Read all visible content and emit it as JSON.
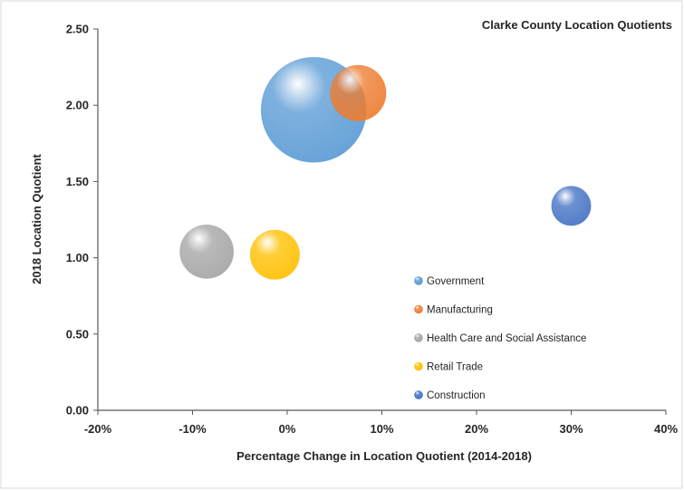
{
  "chart_data": {
    "type": "bubble",
    "title": "Clarke County Location Quotients",
    "xlabel": "Percentage Change in Location Quotient (2014-2018)",
    "ylabel": "2018 Location Quotient",
    "xlim": [
      -20,
      40
    ],
    "ylim": [
      0,
      2.5
    ],
    "x_ticks": [
      "-20%",
      "-10%",
      "0%",
      "10%",
      "20%",
      "30%",
      "40%"
    ],
    "x_tick_values": [
      -20,
      -10,
      0,
      10,
      20,
      30,
      40
    ],
    "y_ticks": [
      "0.00",
      "0.50",
      "1.00",
      "1.50",
      "2.00",
      "2.50"
    ],
    "y_tick_values": [
      0,
      0.5,
      1.0,
      1.5,
      2.0,
      2.5
    ],
    "grid": false,
    "legend_position": "lower-right inside plot",
    "series": [
      {
        "name": "Government",
        "x": 2.8,
        "y": 1.97,
        "size": 100,
        "color": "#5b9bd5"
      },
      {
        "name": "Manufacturing",
        "x": 7.5,
        "y": 2.08,
        "size": 28,
        "color": "#ed7d31"
      },
      {
        "name": "Health Care and Social Assistance",
        "x": -8.5,
        "y": 1.04,
        "size": 26,
        "color": "#a5a5a5"
      },
      {
        "name": "Retail Trade",
        "x": -1.3,
        "y": 1.02,
        "size": 22,
        "color": "#ffc000"
      },
      {
        "name": "Construction",
        "x": 30.0,
        "y": 1.34,
        "size": 14,
        "color": "#4472c4"
      }
    ]
  }
}
